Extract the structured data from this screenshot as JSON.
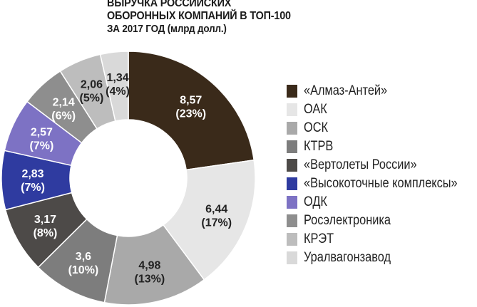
{
  "title_lines": [
    "ВЫРУЧКА РОССИЙСКИХ",
    "ОБОРОННЫХ КОМПАНИЙ В ТОП-100",
    "ЗА 2017 ГОД (млрд долл.)"
  ],
  "chart_data": {
    "type": "pie",
    "title": "ВЫРУЧКА РОССИЙСКИХ ОБОРОННЫХ КОМПАНИЙ В ТОП-100 ЗА 2017 ГОД (млрд долл.)",
    "donut": true,
    "legend_position": "right",
    "slices": [
      {
        "name": "«Алмаз-Антей»",
        "value": 8.57,
        "value_label": "8,57",
        "pct_label": "(23%)",
        "color": "#3a2a1a",
        "text_color": "#ffffff"
      },
      {
        "name": "ОАК",
        "value": 6.44,
        "value_label": "6,44",
        "pct_label": "(17%)",
        "color": "#e6e6e6",
        "text_color": "#222222"
      },
      {
        "name": "ОСК",
        "value": 4.98,
        "value_label": "4,98",
        "pct_label": "(13%)",
        "color": "#a9a9a9",
        "text_color": "#222222"
      },
      {
        "name": "КТРВ",
        "value": 3.6,
        "value_label": "3,6",
        "pct_label": "(10%)",
        "color": "#7d7d7d",
        "text_color": "#ffffff"
      },
      {
        "name": "«Вертолеты России»",
        "value": 3.17,
        "value_label": "3,17",
        "pct_label": "(8%)",
        "color": "#4d4a48",
        "text_color": "#ffffff"
      },
      {
        "name": "«Высокоточные комплексы»",
        "value": 2.83,
        "value_label": "2,83",
        "pct_label": "(7%)",
        "color": "#2f3ba0",
        "text_color": "#ffffff"
      },
      {
        "name": "ОДК",
        "value": 2.57,
        "value_label": "2,57",
        "pct_label": "(7%)",
        "color": "#7d72c4",
        "text_color": "#ffffff"
      },
      {
        "name": "Росэлектроника",
        "value": 2.14,
        "value_label": "2,14",
        "pct_label": "(6%)",
        "color": "#8e8e8e",
        "text_color": "#ffffff"
      },
      {
        "name": "КРЭТ",
        "value": 2.06,
        "value_label": "2,06",
        "pct_label": "(5%)",
        "color": "#bdbdbd",
        "text_color": "#222222"
      },
      {
        "name": "Уралвагонзавод",
        "value": 1.34,
        "value_label": "1,34",
        "pct_label": "(4%)",
        "color": "#d9d9d9",
        "text_color": "#222222"
      }
    ]
  }
}
